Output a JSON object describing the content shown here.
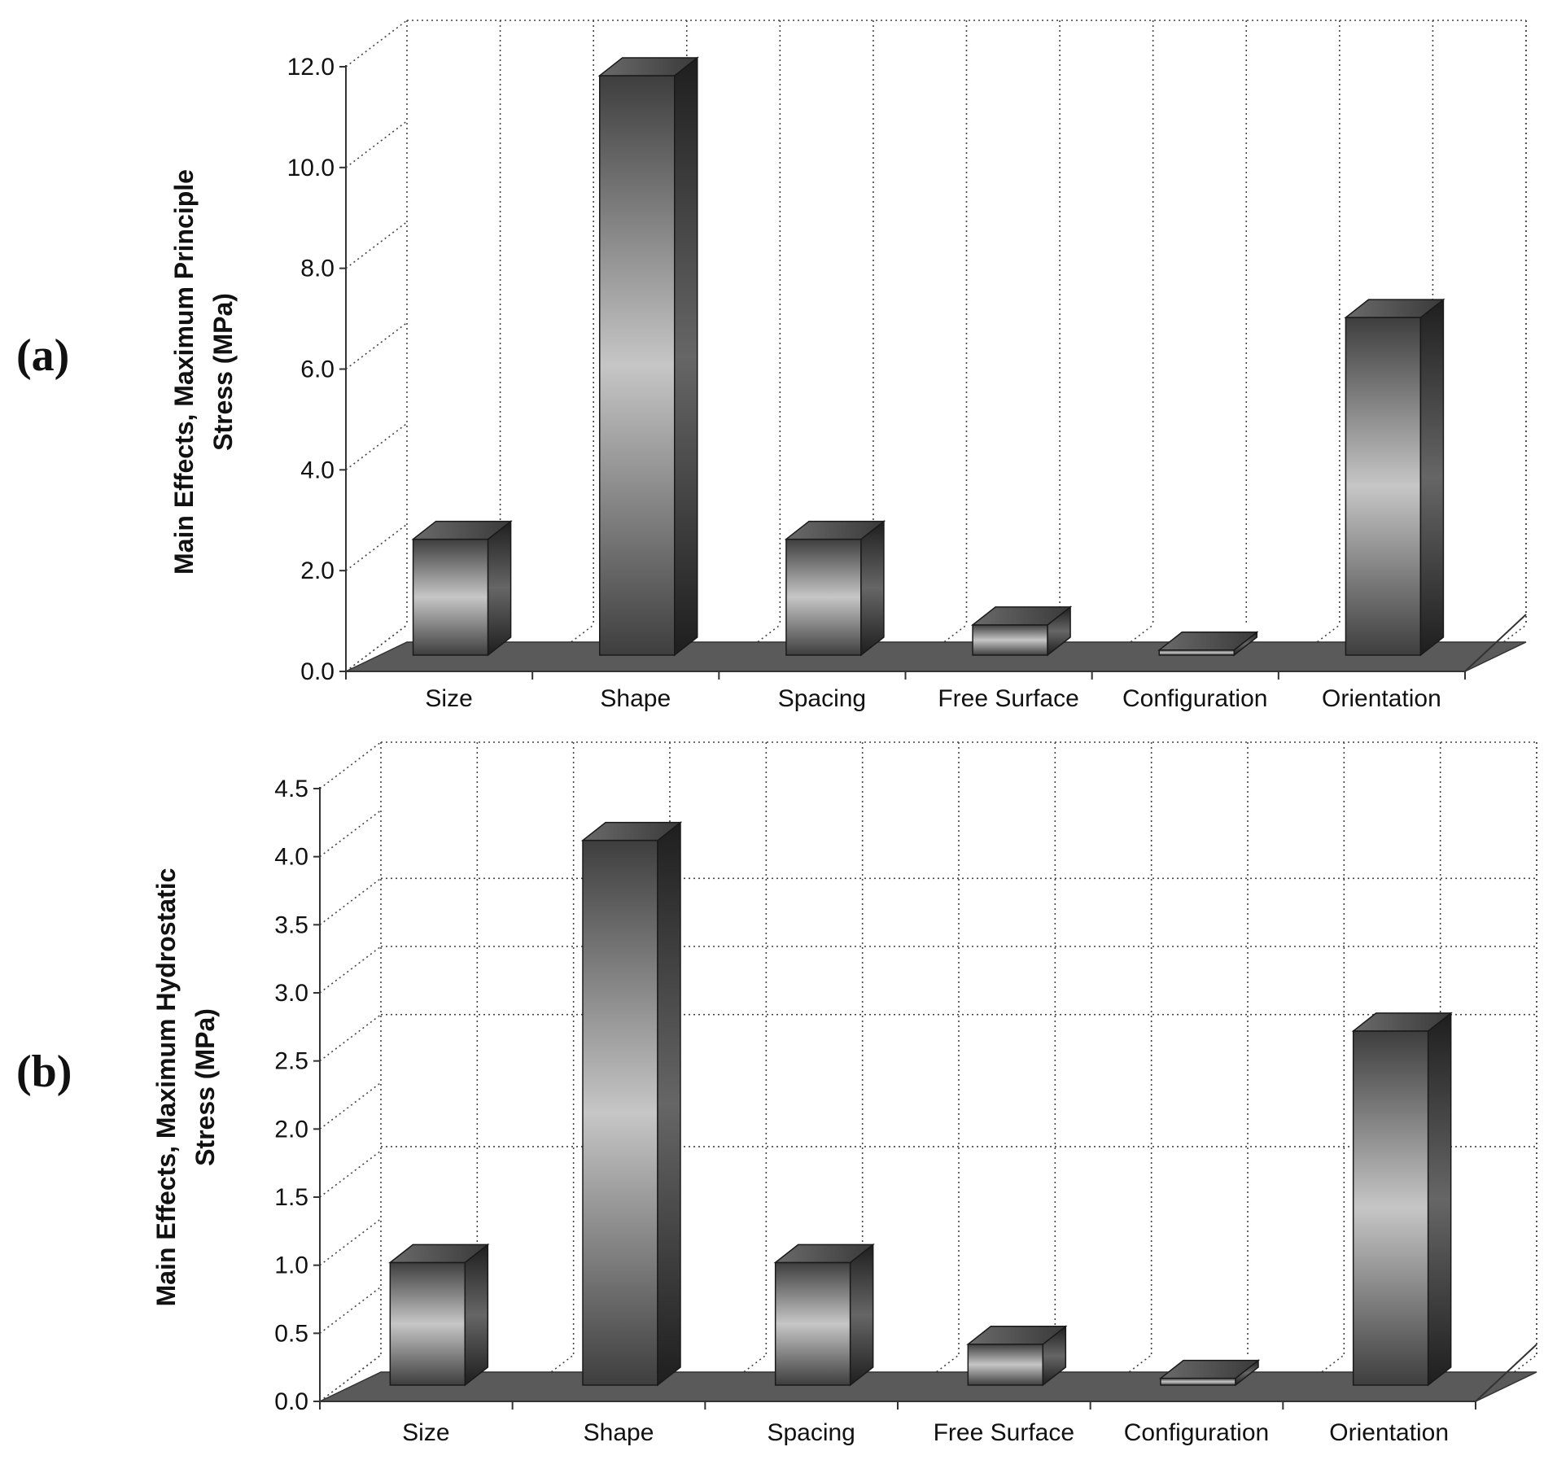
{
  "figure": {
    "background": "#ffffff",
    "bar_dark": "#3c3c3c",
    "bar_light": "#c4c4c4",
    "floor_color": "#555555"
  },
  "chart_data": [
    {
      "panel_label": "(a)",
      "type": "bar",
      "style": "3d-bar",
      "categories": [
        "Size",
        "Shape",
        "Spacing",
        "Free Surface",
        "Configuration",
        "Orientation"
      ],
      "values": [
        2.3,
        11.5,
        2.3,
        0.6,
        0.1,
        6.7
      ],
      "ylabel_lines": [
        "Main Effects, Maximum Principle",
        "Stress (MPa)"
      ],
      "ylim": [
        0,
        12
      ],
      "yticks": [
        "0.0",
        "2.0",
        "4.0",
        "6.0",
        "8.0",
        "10.0",
        "12.0"
      ],
      "grid": true
    },
    {
      "panel_label": "(b)",
      "type": "bar",
      "style": "3d-bar",
      "categories": [
        "Size",
        "Shape",
        "Spacing",
        "Free Surface",
        "Configuration",
        "Orientation"
      ],
      "values": [
        0.9,
        4.0,
        0.9,
        0.3,
        0.05,
        2.6
      ],
      "ylabel_lines": [
        "Main Effects, Maximum Hydrostatic",
        "Stress (MPa)"
      ],
      "ylim": [
        0,
        4.5
      ],
      "yticks": [
        "0.0",
        "0.5",
        "1.0",
        "1.5",
        "2.0",
        "2.5",
        "3.0",
        "3.5",
        "4.0",
        "4.5"
      ],
      "grid": true
    }
  ]
}
